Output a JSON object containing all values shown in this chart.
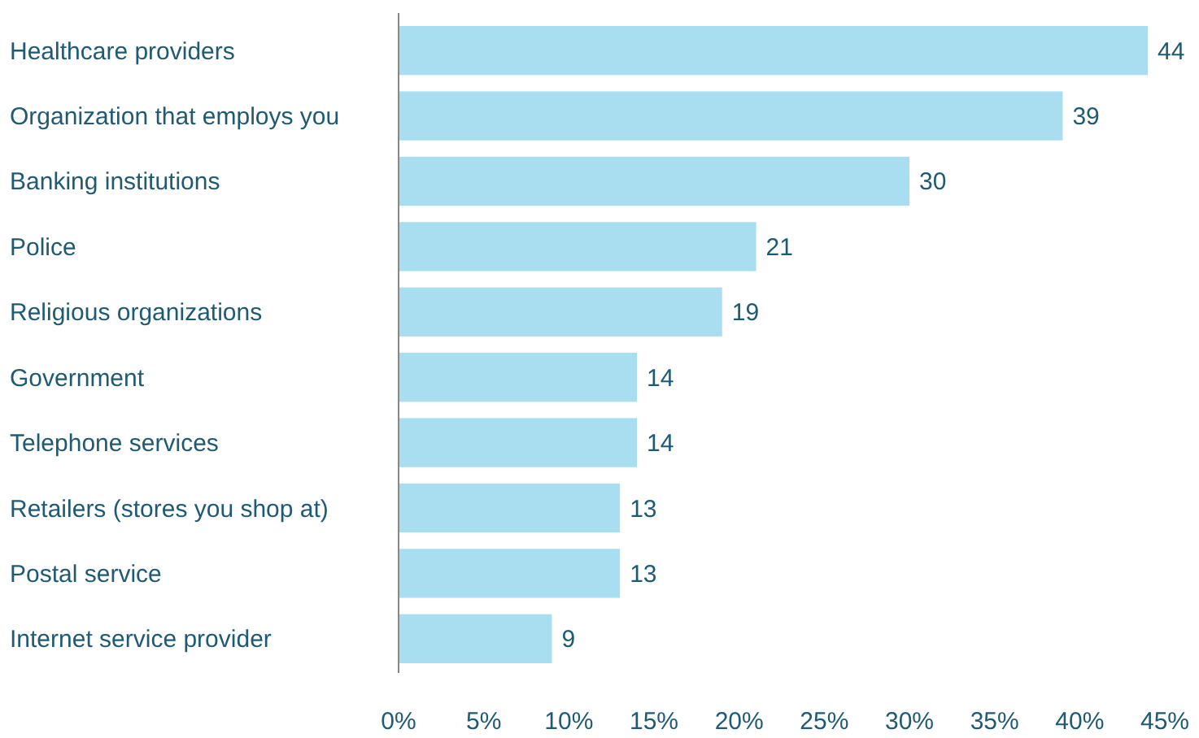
{
  "chart_data": {
    "type": "bar",
    "orientation": "horizontal",
    "categories": [
      "Healthcare providers",
      "Organization that employs you",
      "Banking institutions",
      "Police",
      "Religious organizations",
      "Government",
      "Telephone services",
      "Retailers (stores you shop at)",
      "Postal service",
      "Internet service provider"
    ],
    "values": [
      44,
      39,
      30,
      21,
      19,
      14,
      14,
      13,
      13,
      9
    ],
    "color": "#a8def0",
    "xlim": [
      0,
      45
    ],
    "xticks": [
      {
        "value": 0,
        "label": "0%"
      },
      {
        "value": 5,
        "label": "5%"
      },
      {
        "value": 10,
        "label": "10%"
      },
      {
        "value": 15,
        "label": "15%"
      },
      {
        "value": 20,
        "label": "20%"
      },
      {
        "value": 25,
        "label": "25%"
      },
      {
        "value": 30,
        "label": "30%"
      },
      {
        "value": 35,
        "label": "35%"
      },
      {
        "value": 40,
        "label": "40%"
      },
      {
        "value": 45,
        "label": "45%"
      }
    ],
    "data_labels": true,
    "grid": false
  }
}
